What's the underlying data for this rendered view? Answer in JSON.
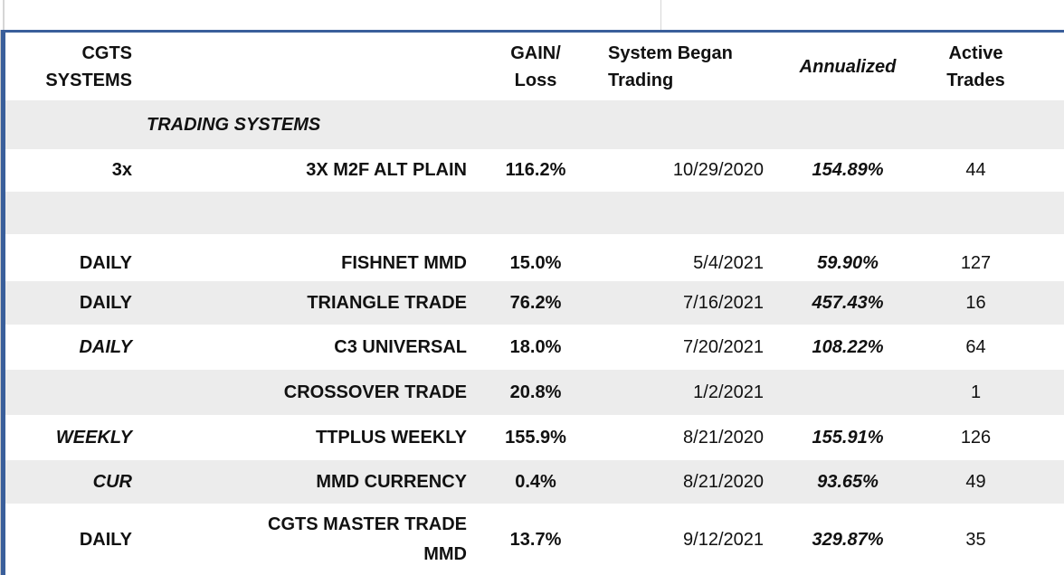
{
  "colors": {
    "accent_border": "#3A5F9B",
    "row_shade": "#ECECEC",
    "text": "#111111"
  },
  "header": {
    "systems": [
      "CGTS",
      "SYSTEMS"
    ],
    "name": "",
    "gain": [
      "GAIN/",
      "Loss"
    ],
    "began": [
      "System Began",
      "Trading"
    ],
    "annualized": "Annualized",
    "trades": [
      "Active",
      "Trades"
    ]
  },
  "rows": [
    {
      "type": "section",
      "label": "TRADING SYSTEMS"
    },
    {
      "type": "data",
      "category": "3x",
      "category_italic": false,
      "name": "3X M2F ALT PLAIN",
      "gain": "116.2%",
      "began": "10/29/2020",
      "annualized": "154.89%",
      "trades": "44"
    },
    {
      "type": "empty"
    },
    {
      "type": "empty"
    },
    {
      "type": "data",
      "category": "DAILY",
      "category_italic": false,
      "name": "FISHNET MMD",
      "gain": "15.0%",
      "began": "5/4/2021",
      "annualized": "59.90%",
      "trades": "127"
    },
    {
      "type": "data",
      "category": "DAILY",
      "category_italic": false,
      "name": "TRIANGLE TRADE",
      "gain": "76.2%",
      "began": "7/16/2021",
      "annualized": "457.43%",
      "trades": "16"
    },
    {
      "type": "data",
      "category": "DAILY",
      "category_italic": true,
      "name": "C3 UNIVERSAL",
      "gain": "18.0%",
      "began": "7/20/2021",
      "annualized": "108.22%",
      "trades": "64"
    },
    {
      "type": "data",
      "category": "",
      "category_italic": false,
      "name": "CROSSOVER TRADE",
      "gain": "20.8%",
      "began": "1/2/2021",
      "annualized": "",
      "trades": "1"
    },
    {
      "type": "data",
      "category": "WEEKLY",
      "category_italic": true,
      "name": "TTPLUS WEEKLY",
      "gain": "155.9%",
      "began": "8/21/2020",
      "annualized": "155.91%",
      "trades": "126"
    },
    {
      "type": "data",
      "category": "CUR",
      "category_italic": true,
      "name": "MMD CURRENCY",
      "gain": "0.4%",
      "began": "8/21/2020",
      "annualized": "93.65%",
      "trades": "49"
    },
    {
      "type": "data",
      "category": "DAILY",
      "category_italic": false,
      "name": [
        "CGTS MASTER TRADE",
        "MMD"
      ],
      "gain": "13.7%",
      "began": "9/12/2021",
      "annualized": "329.87%",
      "trades": "35"
    }
  ]
}
